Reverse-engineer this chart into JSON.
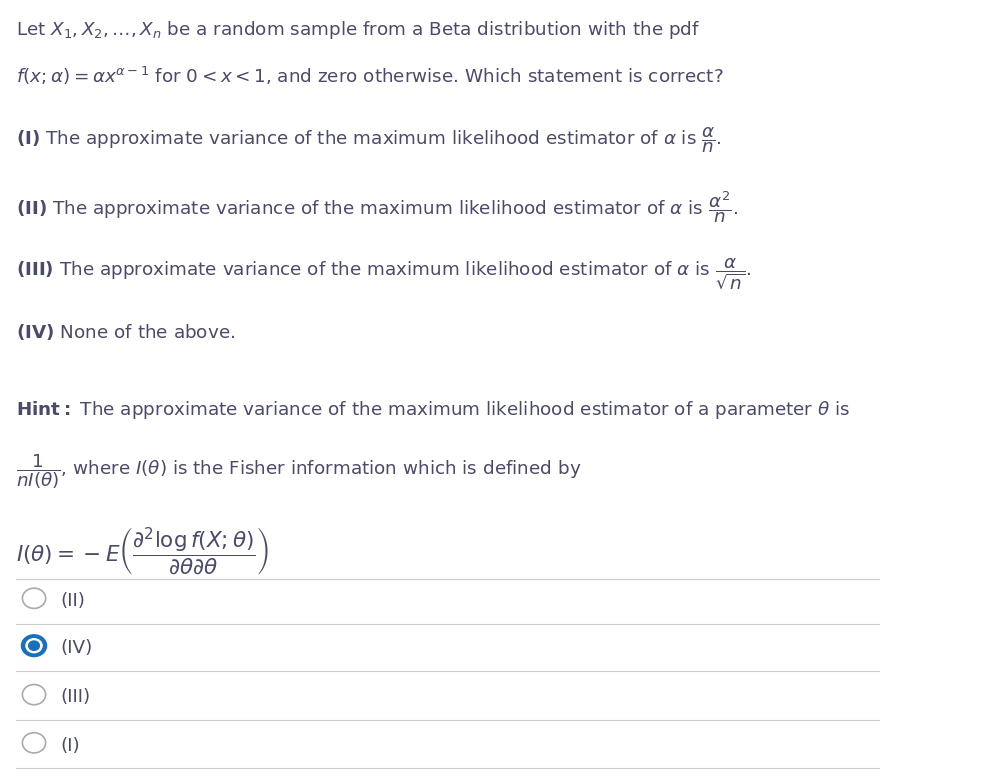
{
  "bg_color": "#ffffff",
  "text_color": "#4a4a6a",
  "title_line1": "Let $X_1, X_2, \\ldots, X_n$ be a random sample from a Beta distribution with the pdf",
  "title_line2": "$f(x;\\alpha) = \\alpha x^{\\alpha-1}$ for $0 < x < 1$, and zero otherwise. Which statement is correct?",
  "choices": [
    "(II)",
    "(IV)",
    "(III)",
    "(I)"
  ],
  "selected_index": 1,
  "divider_color": "#cccccc",
  "circle_color_empty": "#aaaaaa",
  "radio_fill_color": "#1a6fbf"
}
